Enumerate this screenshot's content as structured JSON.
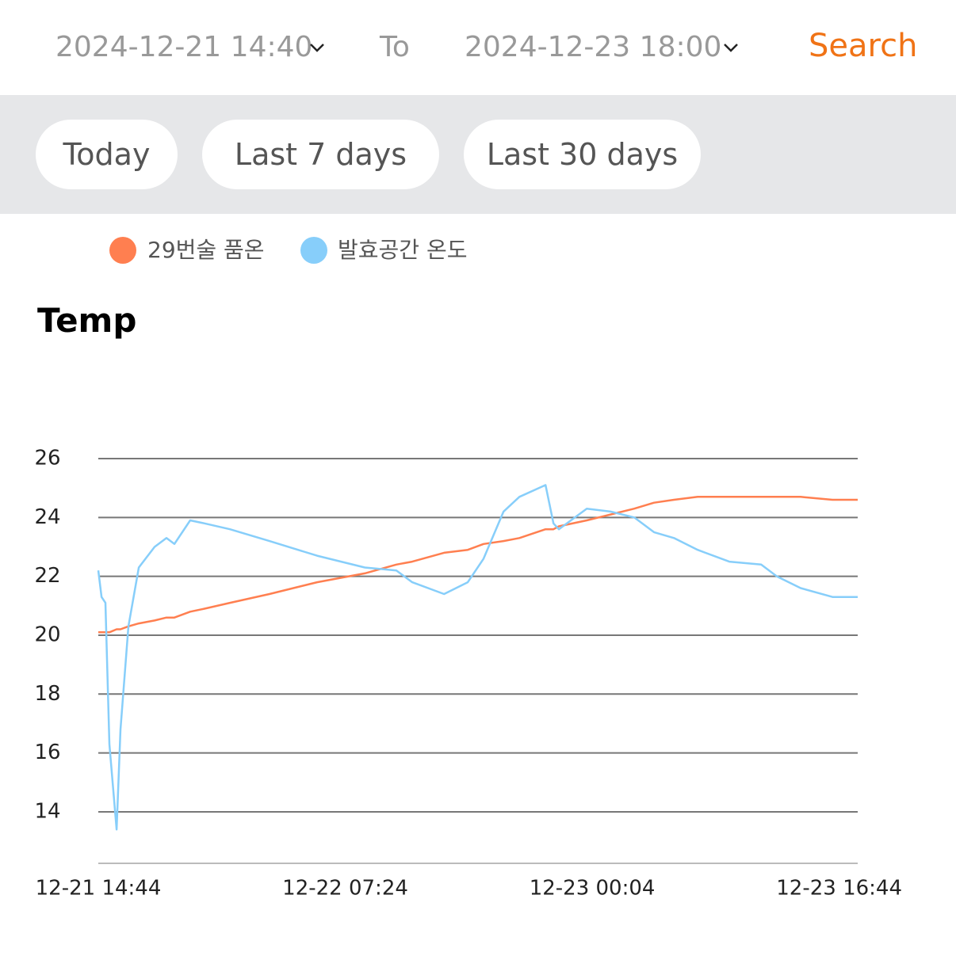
{
  "header": {
    "start": "2024-12-21 14:40",
    "to": "To",
    "end": "2024-12-23 18:00",
    "search": "Search"
  },
  "ranges": [
    "Today",
    "Last 7 days",
    "Last 30 days"
  ],
  "chart_data": {
    "type": "line",
    "title": "Temp",
    "x": [
      "12-21 14:44",
      "12-21 14:57",
      "12-21 15:13",
      "12-21 15:29",
      "12-21 15:58",
      "12-21 16:14",
      "12-21 16:46",
      "12-21 17:28",
      "12-21 18:32",
      "12-21 19:20",
      "12-21 19:52",
      "12-21 20:56",
      "12-21 21:54",
      "12-21 23:37",
      "12-22 02:17",
      "12-22 05:30",
      "12-22 08:43",
      "12-22 10:51",
      "12-22 11:55",
      "12-22 14:04",
      "12-22 15:40",
      "12-22 16:44",
      "12-22 18:05",
      "12-22 19:09",
      "12-22 20:55",
      "12-22 21:27",
      "12-22 21:49",
      "12-22 23:42",
      "12-23 01:18",
      "12-23 02:54",
      "12-23 04:14",
      "12-23 05:35",
      "12-23 07:11",
      "12-23 09:19",
      "12-23 11:28",
      "12-23 12:32",
      "12-23 14:08",
      "12-23 16:17",
      "12-23 17:59"
    ],
    "series": [
      {
        "name": "29번술 품온",
        "color": "#ff7f50",
        "values": [
          20.1,
          20.1,
          20.1,
          20.1,
          20.2,
          20.2,
          20.3,
          20.4,
          20.5,
          20.6,
          20.6,
          20.8,
          20.9,
          21.1,
          21.4,
          21.8,
          22.1,
          22.4,
          22.5,
          22.8,
          22.9,
          23.1,
          23.2,
          23.3,
          23.6,
          23.6,
          23.7,
          23.9,
          24.1,
          24.3,
          24.5,
          24.6,
          24.7,
          24.7,
          24.7,
          24.7,
          24.7,
          24.6,
          24.6
        ]
      },
      {
        "name": "발효공간 온도",
        "color": "#87cefa",
        "values": [
          22.2,
          21.3,
          21.1,
          16.3,
          13.4,
          16.8,
          20.3,
          22.3,
          23.0,
          23.3,
          23.1,
          23.9,
          23.8,
          23.6,
          23.2,
          22.7,
          22.3,
          22.2,
          21.8,
          21.4,
          21.8,
          22.6,
          24.2,
          24.7,
          25.1,
          23.8,
          23.6,
          24.3,
          24.2,
          24.0,
          23.5,
          23.3,
          22.9,
          22.5,
          22.4,
          22.0,
          21.6,
          21.3,
          21.3
        ]
      }
    ],
    "xlim": [
      "12-21 14:44",
      "12-23 17:59"
    ],
    "xticks": [
      "12-21 14:44",
      "12-22 07:24",
      "12-23 00:04",
      "12-23 16:44"
    ],
    "ylim": [
      12.25,
      26
    ],
    "yticks": [
      14,
      16,
      18,
      20,
      22,
      24,
      26
    ],
    "grid": true
  }
}
